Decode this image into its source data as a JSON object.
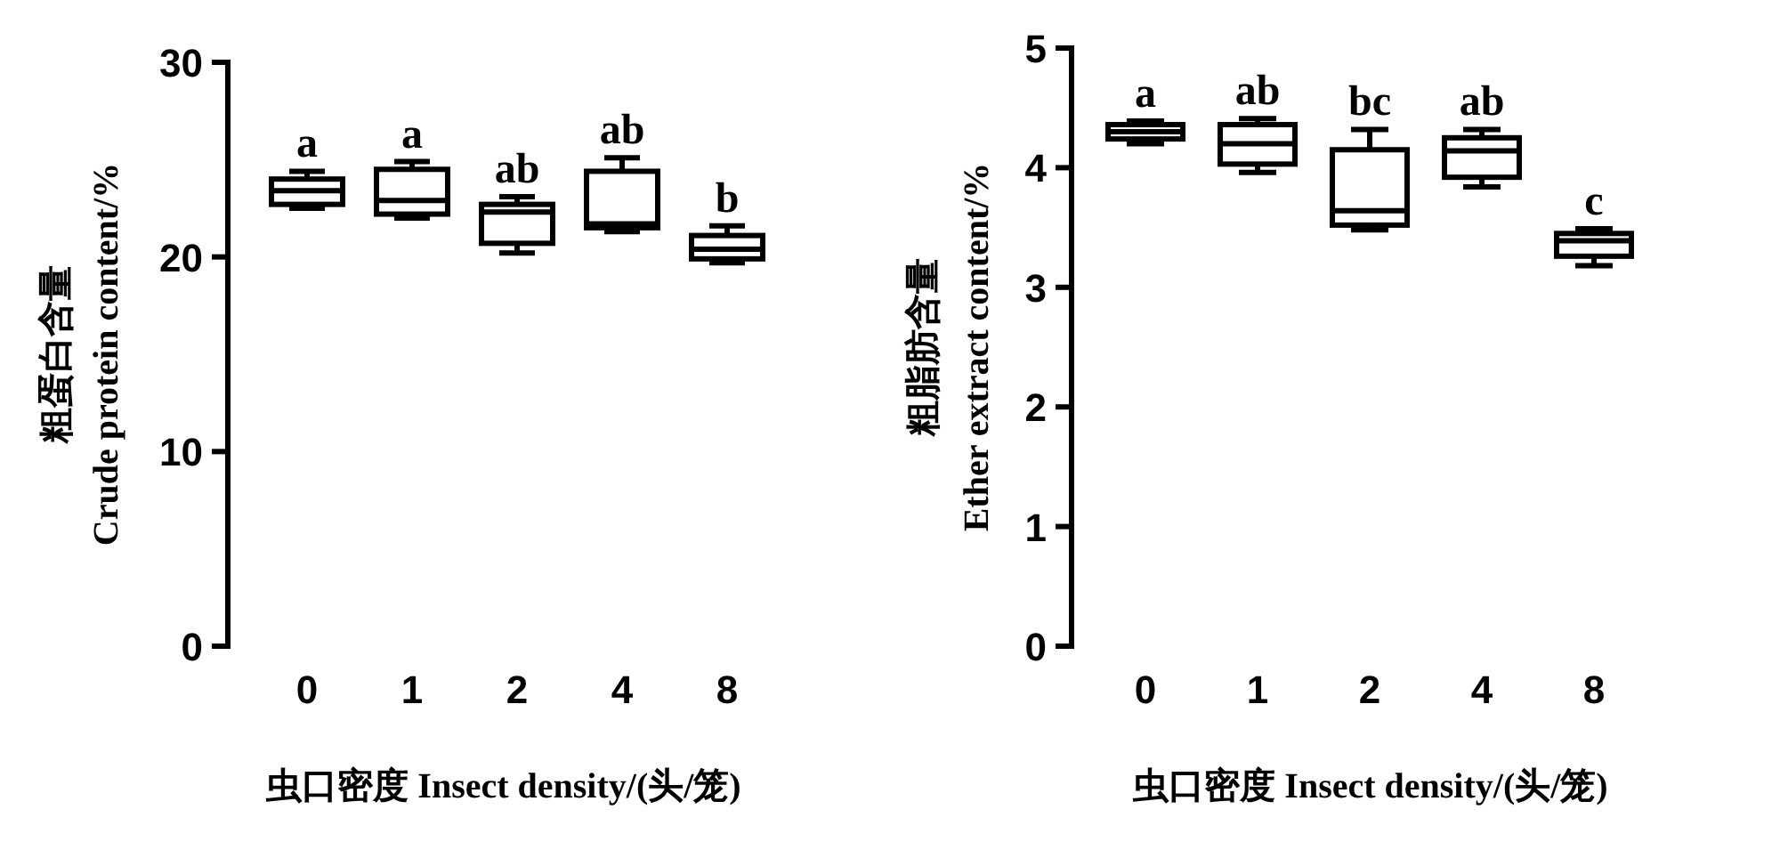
{
  "chart_data": [
    {
      "type": "box",
      "categories": [
        "0",
        "1",
        "2",
        "4",
        "8"
      ],
      "ylabel": "粗蛋白含量\nCrude protein content/%",
      "xlabel": "虫口密度 Insect density/(头/笼)",
      "ylim": [
        0,
        30
      ],
      "yticks": [
        0,
        10,
        20,
        30
      ],
      "grid": false,
      "boxes": [
        {
          "low": 22.5,
          "q1": 22.7,
          "median": 23.4,
          "q3": 24.0,
          "high": 24.4
        },
        {
          "low": 22.0,
          "q1": 22.2,
          "median": 22.9,
          "q3": 24.5,
          "high": 24.9
        },
        {
          "low": 20.2,
          "q1": 20.7,
          "median": 22.3,
          "q3": 22.7,
          "high": 23.1
        },
        {
          "low": 21.3,
          "q1": 21.5,
          "median": 21.7,
          "q3": 24.4,
          "high": 25.1
        },
        {
          "low": 19.7,
          "q1": 19.9,
          "median": 20.4,
          "q3": 21.1,
          "high": 21.6
        }
      ],
      "annotations": [
        {
          "text": "a",
          "x": "0",
          "y": 24.4
        },
        {
          "text": "a",
          "x": "1",
          "y": 24.9
        },
        {
          "text": "ab",
          "x": "2",
          "y": 23.1
        },
        {
          "text": "ab",
          "x": "4",
          "y": 25.1
        },
        {
          "text": "b",
          "x": "8",
          "y": 21.6
        }
      ]
    },
    {
      "type": "box",
      "categories": [
        "0",
        "1",
        "2",
        "4",
        "8"
      ],
      "ylabel": "粗脂肪含量\nEther extract content/%",
      "xlabel": "虫口密度 Insect density/(头/笼)",
      "ylim": [
        0,
        5
      ],
      "yticks": [
        0,
        1,
        2,
        3,
        4,
        5
      ],
      "grid": false,
      "boxes": [
        {
          "low": 4.2,
          "q1": 4.24,
          "median": 4.3,
          "q3": 4.36,
          "high": 4.39
        },
        {
          "low": 3.96,
          "q1": 4.03,
          "median": 4.2,
          "q3": 4.36,
          "high": 4.41
        },
        {
          "low": 3.48,
          "q1": 3.52,
          "median": 3.64,
          "q3": 4.15,
          "high": 4.32
        },
        {
          "low": 3.84,
          "q1": 3.92,
          "median": 4.14,
          "q3": 4.25,
          "high": 4.32
        },
        {
          "low": 3.18,
          "q1": 3.26,
          "median": 3.39,
          "q3": 3.45,
          "high": 3.49
        }
      ],
      "annotations": [
        {
          "text": "a",
          "x": "0",
          "y": 4.39
        },
        {
          "text": "ab",
          "x": "1",
          "y": 4.41
        },
        {
          "text": "bc",
          "x": "2",
          "y": 4.32
        },
        {
          "text": "ab",
          "x": "4",
          "y": 4.32
        },
        {
          "text": "c",
          "x": "8",
          "y": 3.49
        }
      ]
    }
  ]
}
